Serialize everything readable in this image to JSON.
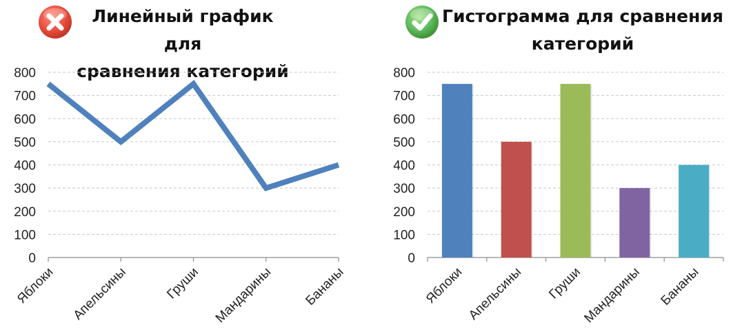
{
  "left": {
    "title_line1": "Линейный график для",
    "title_line2": "сравнения категорий",
    "icon": "red-cross-icon",
    "icon_color": "#e84c3d",
    "series_color": "#4f81bd"
  },
  "right": {
    "title_line1": "Гистограмма для сравнения",
    "title_line2": "категорий",
    "icon": "green-check-icon",
    "icon_color": "#5cb85c"
  },
  "chart_data": [
    {
      "type": "line",
      "categories": [
        "Яблоки",
        "Апельсины",
        "Груши",
        "Мандарины",
        "Бананы"
      ],
      "values": [
        750,
        500,
        750,
        300,
        400
      ],
      "ylim": [
        0,
        800
      ],
      "yticks": [
        0,
        100,
        200,
        300,
        400,
        500,
        600,
        700,
        800
      ],
      "grid": true,
      "color": "#4f81bd"
    },
    {
      "type": "bar",
      "categories": [
        "Яблоки",
        "Апельсины",
        "Груши",
        "Мандарины",
        "Бананы"
      ],
      "values": [
        750,
        500,
        750,
        300,
        400
      ],
      "ylim": [
        0,
        800
      ],
      "yticks": [
        0,
        100,
        200,
        300,
        400,
        500,
        600,
        700,
        800
      ],
      "grid": true,
      "colors": [
        "#4f81bd",
        "#c0504d",
        "#9bbb59",
        "#8064a2",
        "#4bacc6"
      ]
    }
  ]
}
